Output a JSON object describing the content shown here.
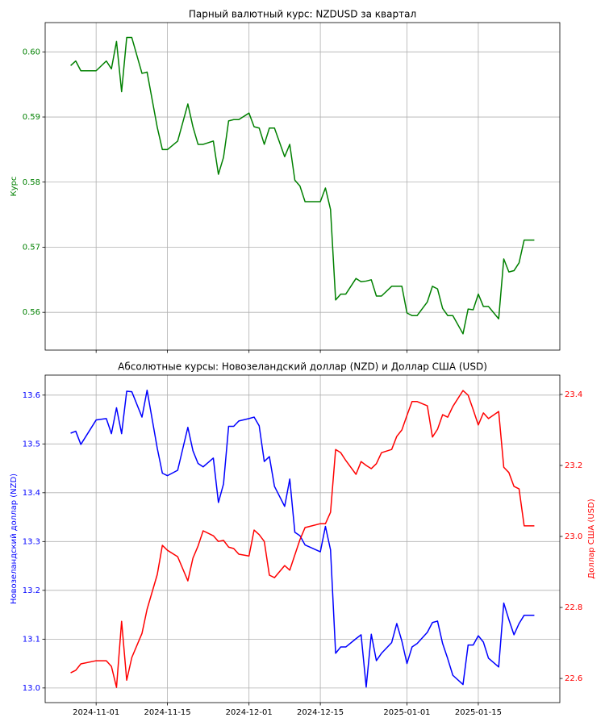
{
  "chart_data": [
    {
      "type": "line",
      "title": "Парный валютный курс: NZDUSD за квартал",
      "ylabel": "Курс",
      "grid": true,
      "x": [
        "2024-10-27",
        "2024-10-28",
        "2024-10-29",
        "2024-11-01",
        "2024-11-03",
        "2024-11-04",
        "2024-11-05",
        "2024-11-06",
        "2024-11-07",
        "2024-11-08",
        "2024-11-10",
        "2024-11-11",
        "2024-11-13",
        "2024-11-14",
        "2024-11-15",
        "2024-11-17",
        "2024-11-19",
        "2024-11-20",
        "2024-11-21",
        "2024-11-22",
        "2024-11-24",
        "2024-11-25",
        "2024-11-26",
        "2024-11-27",
        "2024-11-28",
        "2024-11-29",
        "2024-12-01",
        "2024-12-02",
        "2024-12-03",
        "2024-12-04",
        "2024-12-05",
        "2024-12-06",
        "2024-12-08",
        "2024-12-09",
        "2024-12-10",
        "2024-12-11",
        "2024-12-12",
        "2024-12-15",
        "2024-12-16",
        "2024-12-17",
        "2024-12-18",
        "2024-12-19",
        "2024-12-20",
        "2024-12-22",
        "2024-12-23",
        "2024-12-24",
        "2024-12-25",
        "2024-12-26",
        "2024-12-27",
        "2024-12-29",
        "2024-12-30",
        "2024-12-31",
        "2025-01-01",
        "2025-01-02",
        "2025-01-03",
        "2025-01-05",
        "2025-01-06",
        "2025-01-07",
        "2025-01-08",
        "2025-01-09",
        "2025-01-10",
        "2025-01-12",
        "2025-01-13",
        "2025-01-14",
        "2025-01-15",
        "2025-01-16",
        "2025-01-17",
        "2025-01-19",
        "2025-01-20",
        "2025-01-21",
        "2025-01-22",
        "2025-01-23",
        "2025-01-24",
        "2025-01-26"
      ],
      "series": [
        {
          "color": "#008000",
          "values": [
            0.5979,
            0.5986,
            0.5971,
            0.5971,
            0.5986,
            0.5974,
            0.6016,
            0.5939,
            0.6022,
            0.6022,
            0.5967,
            0.5969,
            0.5884,
            0.585,
            0.585,
            0.5863,
            0.592,
            0.5885,
            0.5858,
            0.5858,
            0.5863,
            0.5812,
            0.5838,
            0.5894,
            0.5896,
            0.5896,
            0.5906,
            0.5885,
            0.5883,
            0.5858,
            0.5883,
            0.5883,
            0.5839,
            0.5858,
            0.5803,
            0.5794,
            0.577,
            0.577,
            0.5791,
            0.5758,
            0.5619,
            0.5628,
            0.5628,
            0.5652,
            0.5647,
            0.5648,
            0.565,
            0.5625,
            0.5625,
            0.564,
            0.564,
            0.564,
            0.5599,
            0.5595,
            0.5595,
            0.5616,
            0.564,
            0.5636,
            0.5606,
            0.5595,
            0.5595,
            0.5567,
            0.5605,
            0.5604,
            0.5628,
            0.5609,
            0.5609,
            0.559,
            0.5682,
            0.5662,
            0.5664,
            0.5676,
            0.5711,
            0.5711
          ]
        }
      ],
      "xlim": [
        "2024-10-22",
        "2025-01-31"
      ],
      "ylim": [
        0.5542,
        0.6045
      ],
      "yticks": [
        0.56,
        0.57,
        0.58,
        0.59,
        {
          "value": 0.6,
          "label": "0.60"
        }
      ]
    },
    {
      "type": "line",
      "title": "Абсолютные курсы: Новозеландский доллар (NZD) и Доллар США (USD)",
      "ylabel": "Новозеландский доллар (NZD)",
      "y2label": "Доллар США (USD)",
      "grid": true,
      "x": [
        "2024-10-27",
        "2024-10-28",
        "2024-10-29",
        "2024-11-01",
        "2024-11-03",
        "2024-11-04",
        "2024-11-05",
        "2024-11-06",
        "2024-11-07",
        "2024-11-08",
        "2024-11-10",
        "2024-11-11",
        "2024-11-13",
        "2024-11-14",
        "2024-11-15",
        "2024-11-17",
        "2024-11-19",
        "2024-11-20",
        "2024-11-21",
        "2024-11-22",
        "2024-11-24",
        "2024-11-25",
        "2024-11-26",
        "2024-11-27",
        "2024-11-28",
        "2024-11-29",
        "2024-12-01",
        "2024-12-02",
        "2024-12-03",
        "2024-12-04",
        "2024-12-05",
        "2024-12-06",
        "2024-12-08",
        "2024-12-09",
        "2024-12-10",
        "2024-12-11",
        "2024-12-12",
        "2024-12-15",
        "2024-12-16",
        "2024-12-17",
        "2024-12-18",
        "2024-12-19",
        "2024-12-20",
        "2024-12-22",
        "2024-12-23",
        "2024-12-24",
        "2024-12-25",
        "2024-12-26",
        "2024-12-27",
        "2024-12-29",
        "2024-12-30",
        "2024-12-31",
        "2025-01-01",
        "2025-01-02",
        "2025-01-03",
        "2025-01-05",
        "2025-01-06",
        "2025-01-07",
        "2025-01-08",
        "2025-01-09",
        "2025-01-10",
        "2025-01-12",
        "2025-01-13",
        "2025-01-14",
        "2025-01-15",
        "2025-01-16",
        "2025-01-17",
        "2025-01-19",
        "2025-01-20",
        "2025-01-21",
        "2025-01-22",
        "2025-01-23",
        "2025-01-24",
        "2025-01-26"
      ],
      "series": [
        {
          "color": "#0000ff",
          "values": [
            13.522,
            13.526,
            13.499,
            13.549,
            13.552,
            13.521,
            13.574,
            13.521,
            13.608,
            13.607,
            13.555,
            13.61,
            13.491,
            13.44,
            13.435,
            13.446,
            13.534,
            13.486,
            13.46,
            13.453,
            13.471,
            13.38,
            13.418,
            13.536,
            13.536,
            13.547,
            13.552,
            13.555,
            13.537,
            13.464,
            13.474,
            13.413,
            13.372,
            13.428,
            13.319,
            13.312,
            13.293,
            13.279,
            13.331,
            13.283,
            13.071,
            13.084,
            13.084,
            13.101,
            13.109,
            13.002,
            13.11,
            13.056,
            13.071,
            13.093,
            13.132,
            13.096,
            13.05,
            13.084,
            13.091,
            13.114,
            13.134,
            13.137,
            13.091,
            13.06,
            13.026,
            13.007,
            13.088,
            13.088,
            13.107,
            13.094,
            13.061,
            13.043,
            13.174,
            13.14,
            13.109,
            13.132,
            13.149,
            13.149
          ]
        },
        {
          "color": "#ff0000",
          "axis": "y2",
          "values": [
            22.616,
            22.623,
            22.641,
            22.65,
            22.65,
            22.634,
            22.575,
            22.761,
            22.595,
            22.659,
            22.727,
            22.795,
            22.893,
            22.975,
            22.961,
            22.943,
            22.875,
            22.939,
            22.973,
            23.016,
            23.002,
            22.986,
            22.989,
            22.97,
            22.966,
            22.95,
            22.945,
            23.018,
            23.005,
            22.986,
            22.891,
            22.884,
            22.918,
            22.905,
            22.948,
            22.991,
            23.025,
            23.036,
            23.036,
            23.068,
            23.245,
            23.236,
            23.214,
            23.175,
            23.211,
            23.2,
            23.191,
            23.205,
            23.236,
            23.245,
            23.282,
            23.3,
            23.341,
            23.38,
            23.38,
            23.368,
            23.28,
            23.302,
            23.343,
            23.336,
            23.366,
            23.411,
            23.398,
            23.357,
            23.314,
            23.348,
            23.332,
            23.352,
            23.195,
            23.18,
            23.141,
            23.134,
            23.03,
            23.03
          ]
        }
      ],
      "xlim": [
        "2024-10-22",
        "2025-01-31"
      ],
      "xticks": [
        "2024-11-01",
        "2024-11-15",
        "2024-12-01",
        "2024-12-15",
        "2025-01-01",
        "2025-01-15"
      ],
      "ylim": [
        12.97,
        13.641
      ],
      "yticks": [
        {
          "value": 13,
          "label": "13.0"
        },
        13.1,
        13.2,
        13.3,
        13.4,
        13.5,
        13.6
      ],
      "y2lim": [
        22.532,
        23.4545
      ],
      "y2ticks": [
        22.6,
        22.8,
        {
          "value": 23,
          "label": "23.0"
        },
        23.2,
        23.4
      ]
    }
  ]
}
